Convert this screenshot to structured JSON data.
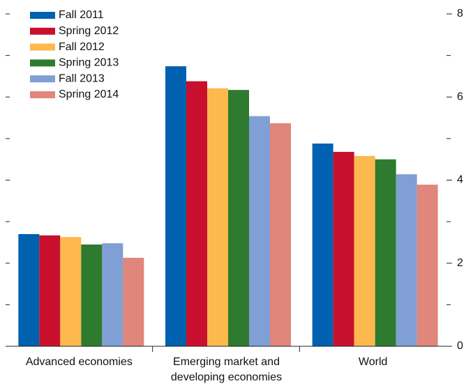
{
  "chart_data": {
    "type": "bar",
    "categories": [
      "Advanced economies",
      "Emerging market and developing economies",
      "World"
    ],
    "series": [
      {
        "name": "Fall 2011",
        "color": "#0061b0",
        "values": [
          2.7,
          6.74,
          4.88
        ]
      },
      {
        "name": "Spring 2012",
        "color": "#c8102e",
        "values": [
          2.67,
          6.38,
          4.68
        ]
      },
      {
        "name": "Fall 2012",
        "color": "#fdb94e",
        "values": [
          2.63,
          6.21,
          4.58
        ]
      },
      {
        "name": "Spring 2013",
        "color": "#2e7a2e",
        "values": [
          2.45,
          6.17,
          4.5
        ]
      },
      {
        "name": "Fall 2013",
        "color": "#7f9fd5",
        "values": [
          2.48,
          5.54,
          4.14
        ]
      },
      {
        "name": "Spring 2014",
        "color": "#e0867b",
        "values": [
          2.13,
          5.37,
          3.89
        ]
      }
    ],
    "ylim": [
      0,
      8
    ],
    "yticks": [
      0,
      2,
      4,
      6,
      8
    ],
    "minor_yticks": [
      1,
      3,
      5,
      7
    ],
    "legend": "upper left"
  }
}
